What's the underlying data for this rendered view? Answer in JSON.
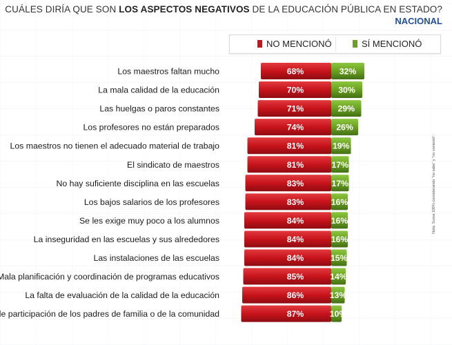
{
  "header": {
    "title_prefix": "CUÁLES DIRÍA QUE SON ",
    "title_emphasis": "LOS ASPECTOS NEGATIVOS",
    "title_suffix": " DE LA EDUCACIÓN PÚBLICA EN ESTADO?",
    "subtitle": "NACIONAL"
  },
  "legend": [
    {
      "label": "NO MENCIONÓ",
      "color": "#c8131b"
    },
    {
      "label": "SÍ MENCIONÓ",
      "color": "#6aa121"
    }
  ],
  "side_note": "Nota: Suma 100% considerando \"no sabe\" y \"no contestó\".",
  "chart_data": {
    "type": "bar",
    "orientation": "horizontal-diverging",
    "title": "CUÁLES DIRÍA QUE SON LOS ASPECTOS NEGATIVOS DE LA EDUCACIÓN PÚBLICA EN ESTADO?",
    "subtitle": "NACIONAL",
    "unit": "%",
    "legend_position": "top-right",
    "categories": [
      "Los maestros faltan mucho",
      "La mala calidad de la educación",
      "Las huelgas o paros constantes",
      "Los profesores no están preparados",
      "Los maestros no tienen el adecuado material de trabajo",
      "El sindicato de maestros",
      "No hay suficiente disciplina en las escuelas",
      "Los bajos salarios de los profesores",
      "Se les exige muy poco a los alumnos",
      "La inseguridad en las escuelas y sus alrededores",
      "Las instalaciones de las escuelas",
      "Mala planificación y coordinación de programas educativos",
      "La falta de evaluación de la calidad de la educación",
      "Falta de participación de los padres de familia o de la comunidad"
    ],
    "series": [
      {
        "name": "NO MENCIONÓ",
        "color": "#c8131b",
        "values": [
          68,
          70,
          71,
          74,
          81,
          81,
          83,
          83,
          84,
          84,
          84,
          85,
          86,
          87
        ]
      },
      {
        "name": "SÍ MENCIONÓ",
        "color": "#6aa121",
        "values": [
          32,
          30,
          29,
          26,
          19,
          17,
          17,
          16,
          16,
          16,
          15,
          14,
          13,
          10
        ]
      }
    ]
  }
}
